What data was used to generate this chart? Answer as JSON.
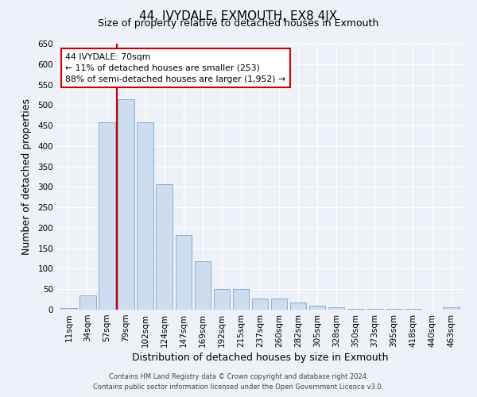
{
  "title": "44, IVYDALE, EXMOUTH, EX8 4JX",
  "subtitle": "Size of property relative to detached houses in Exmouth",
  "xlabel": "Distribution of detached houses by size in Exmouth",
  "ylabel": "Number of detached properties",
  "bar_labels": [
    "11sqm",
    "34sqm",
    "57sqm",
    "79sqm",
    "102sqm",
    "124sqm",
    "147sqm",
    "169sqm",
    "192sqm",
    "215sqm",
    "237sqm",
    "260sqm",
    "282sqm",
    "305sqm",
    "328sqm",
    "350sqm",
    "373sqm",
    "395sqm",
    "418sqm",
    "440sqm",
    "463sqm"
  ],
  "bar_heights": [
    3,
    35,
    458,
    515,
    458,
    307,
    182,
    118,
    50,
    50,
    28,
    28,
    18,
    10,
    5,
    2,
    2,
    1,
    1,
    0,
    5
  ],
  "bar_color": "#cddcef",
  "bar_edge_color": "#8aafd4",
  "ylim": [
    0,
    650
  ],
  "yticks": [
    0,
    50,
    100,
    150,
    200,
    250,
    300,
    350,
    400,
    450,
    500,
    550,
    600,
    650
  ],
  "vline_color": "#cc0000",
  "annotation_box_text": "44 IVYDALE: 70sqm\n← 11% of detached houses are smaller (253)\n88% of semi-detached houses are larger (1,952) →",
  "annotation_box_edge_color": "#cc0000",
  "footer_line1": "Contains HM Land Registry data © Crown copyright and database right 2024.",
  "footer_line2": "Contains public sector information licensed under the Open Government Licence v3.0.",
  "bg_color": "#eef2f8",
  "plot_bg_color": "#eef2f8",
  "grid_color": "#ffffff",
  "title_fontsize": 11,
  "subtitle_fontsize": 9,
  "axis_label_fontsize": 9,
  "tick_fontsize": 7.5,
  "footer_fontsize": 6
}
